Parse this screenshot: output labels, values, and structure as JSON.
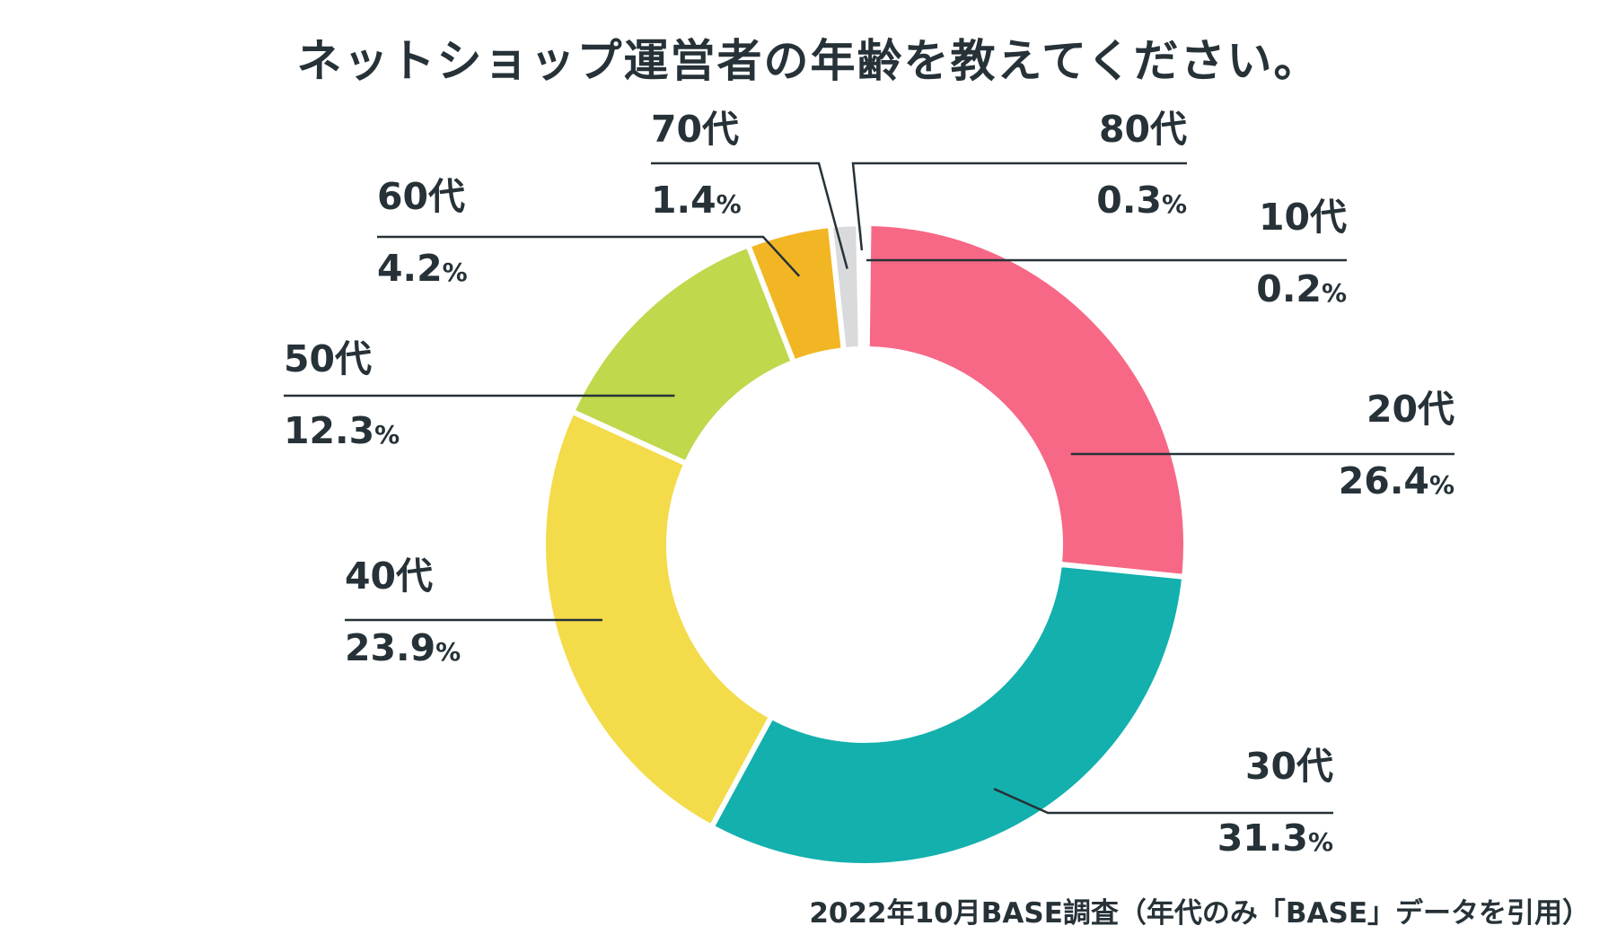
{
  "chart_data": {
    "type": "donut",
    "title": "ネットショップ運営者の年齢を教えてください。",
    "source": "2022年10月BASE調査（年代のみ「BASE」データを引用）",
    "unit": "%",
    "slices": [
      {
        "label": "10代",
        "value": 0.2,
        "value_text": "0.2",
        "color": "#13b0ad"
      },
      {
        "label": "20代",
        "value": 26.4,
        "value_text": "26.4",
        "color": "#f76886"
      },
      {
        "label": "30代",
        "value": 31.3,
        "value_text": "31.3",
        "color": "#13b0ad"
      },
      {
        "label": "40代",
        "value": 23.9,
        "value_text": "23.9",
        "color": "#f4db4a"
      },
      {
        "label": "50代",
        "value": 12.3,
        "value_text": "12.3",
        "color": "#bfd84c"
      },
      {
        "label": "60代",
        "value": 4.2,
        "value_text": "4.2",
        "color": "#f2b624"
      },
      {
        "label": "70代",
        "value": 1.4,
        "value_text": "1.4",
        "color": "#d9dadb"
      },
      {
        "label": "80代",
        "value": 0.3,
        "value_text": "0.3",
        "color": "#b9e0e4"
      }
    ]
  }
}
